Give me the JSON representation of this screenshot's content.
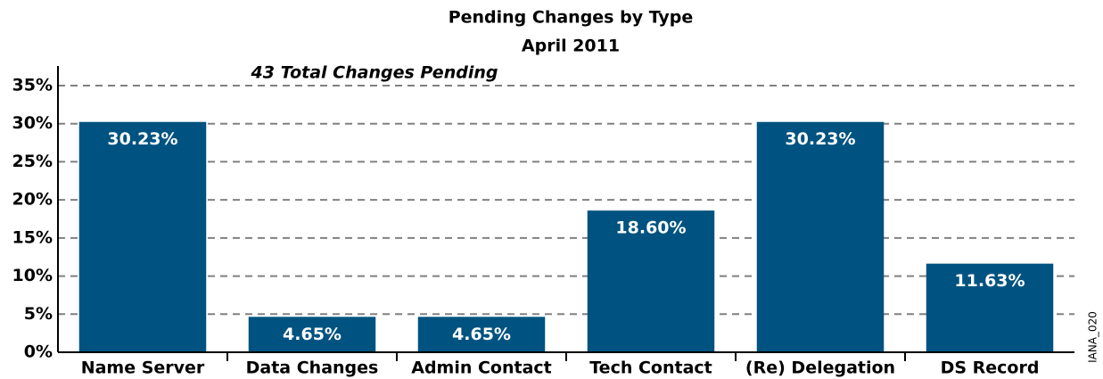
{
  "chart_data": {
    "type": "bar",
    "title": "Pending Changes by Type",
    "subtitle": "April 2011",
    "annotation": "43 Total Changes Pending",
    "side_note": "IANA_020",
    "categories": [
      "Name Server",
      "Data Changes",
      "Admin Contact",
      "Tech Contact",
      "(Re) Delegation",
      "DS Record"
    ],
    "values": [
      30.23,
      4.65,
      4.65,
      18.6,
      30.23,
      11.63
    ],
    "value_labels": [
      "30.23%",
      "4.65%",
      "4.65%",
      "18.60%",
      "30.23%",
      "11.63%"
    ],
    "color": "#005380",
    "ylim": [
      0,
      35
    ],
    "yticks": [
      {
        "value": 0,
        "label": "0%"
      },
      {
        "value": 5,
        "label": "5%"
      },
      {
        "value": 10,
        "label": "10%"
      },
      {
        "value": 15,
        "label": "15%"
      },
      {
        "value": 20,
        "label": "20%"
      },
      {
        "value": 25,
        "label": "25%"
      },
      {
        "value": 30,
        "label": "30%"
      },
      {
        "value": 35,
        "label": "35%"
      }
    ],
    "grid": true
  }
}
